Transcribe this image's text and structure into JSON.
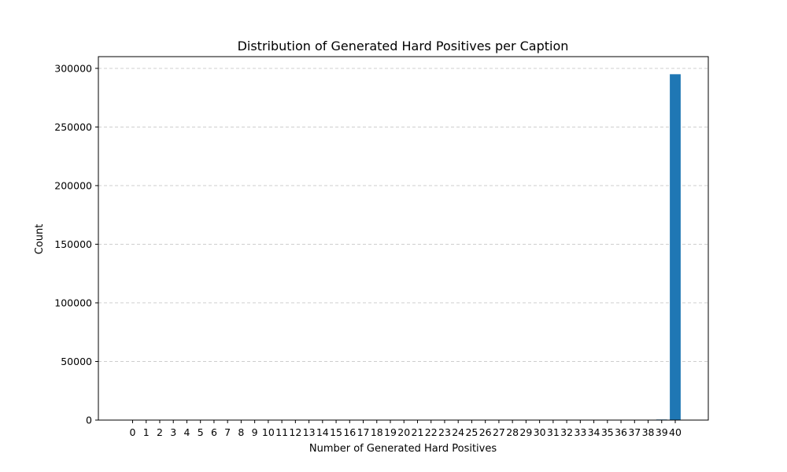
{
  "chart_data": {
    "type": "bar",
    "title": "Distribution of Generated Hard Positives per Caption",
    "xlabel": "Number of Generated Hard Positives",
    "ylabel": "Count",
    "categories": [
      "0",
      "1",
      "2",
      "3",
      "4",
      "5",
      "6",
      "7",
      "8",
      "9",
      "10",
      "11",
      "12",
      "13",
      "14",
      "15",
      "16",
      "17",
      "18",
      "19",
      "20",
      "21",
      "22",
      "23",
      "24",
      "25",
      "26",
      "27",
      "28",
      "29",
      "30",
      "31",
      "32",
      "33",
      "34",
      "35",
      "36",
      "37",
      "38",
      "39",
      "40"
    ],
    "values": [
      0,
      0,
      0,
      0,
      0,
      0,
      0,
      0,
      0,
      0,
      0,
      0,
      0,
      0,
      0,
      0,
      0,
      0,
      0,
      0,
      0,
      0,
      0,
      0,
      0,
      0,
      0,
      0,
      0,
      0,
      0,
      0,
      0,
      0,
      0,
      0,
      0,
      0,
      0,
      500,
      295000
    ],
    "yticks": [
      "0",
      "50000",
      "100000",
      "150000",
      "200000",
      "250000",
      "300000"
    ],
    "ylim": [
      0,
      310000
    ],
    "grid": "y-dashed",
    "bar_color": "#1f77b4"
  }
}
